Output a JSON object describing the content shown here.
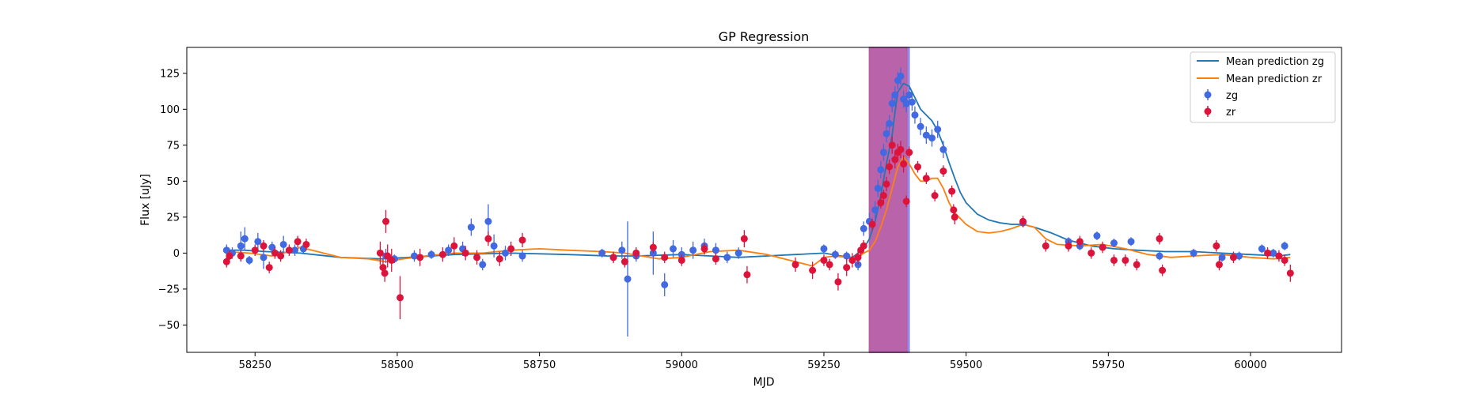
{
  "chart_data": {
    "type": "scatter",
    "title": "GP Regression",
    "xlabel": "MJD",
    "ylabel": "Flux [uJy]",
    "xlim": [
      58130,
      60160
    ],
    "ylim": [
      -69,
      143
    ],
    "xticks": [
      58250,
      58500,
      58750,
      59000,
      59250,
      59500,
      59750,
      60000
    ],
    "yticks": [
      -50,
      -25,
      0,
      25,
      50,
      75,
      100,
      125
    ],
    "grid": false,
    "legend_position": "top-right",
    "shaded_regions": [
      {
        "x0": 59330,
        "x1": 59400,
        "color": "#8080ee"
      },
      {
        "x0": 59330,
        "x1": 59396,
        "color": "#c05a9e"
      }
    ],
    "series": [
      {
        "name": "Mean prediction zg",
        "kind": "line",
        "color": "#1f77b4",
        "x": [
          58200,
          58230,
          58270,
          58330,
          58400,
          58470,
          58520,
          58600,
          58700,
          58800,
          58870,
          58920,
          59000,
          59050,
          59100,
          59150,
          59200,
          59250,
          59280,
          59300,
          59320,
          59330,
          59340,
          59350,
          59360,
          59370,
          59375,
          59380,
          59390,
          59400,
          59410,
          59420,
          59430,
          59440,
          59450,
          59460,
          59470,
          59480,
          59490,
          59500,
          59520,
          59540,
          59560,
          59580,
          59600,
          59620,
          59650,
          59680,
          59720,
          59760,
          59800,
          59850,
          59900,
          59950,
          60000,
          60050,
          60070
        ],
        "y": [
          2,
          2,
          1,
          0,
          -3,
          -4,
          -3,
          -1,
          0,
          -1,
          -2,
          -2,
          -1,
          -2,
          -3,
          -2,
          -1,
          0,
          -2,
          -3,
          3,
          10,
          22,
          40,
          62,
          82,
          98,
          112,
          118,
          116,
          108,
          100,
          96,
          92,
          85,
          75,
          63,
          52,
          42,
          35,
          27,
          23,
          21,
          20,
          20,
          18,
          14,
          9,
          5,
          3,
          2,
          1,
          1,
          0,
          -1,
          -2,
          -1
        ]
      },
      {
        "name": "Mean prediction zr",
        "kind": "line",
        "color": "#ff7f0e",
        "x": [
          58200,
          58240,
          58280,
          58300,
          58330,
          58360,
          58400,
          58450,
          58480,
          58510,
          58550,
          58600,
          58650,
          58700,
          58750,
          58800,
          58860,
          58900,
          58930,
          58960,
          59000,
          59050,
          59100,
          59150,
          59200,
          59230,
          59250,
          59270,
          59290,
          59310,
          59320,
          59330,
          59340,
          59350,
          59360,
          59370,
          59380,
          59390,
          59400,
          59410,
          59420,
          59430,
          59440,
          59450,
          59460,
          59470,
          59480,
          59500,
          59520,
          59540,
          59560,
          59580,
          59600,
          59620,
          59640,
          59660,
          59700,
          59740,
          59780,
          59820,
          59860,
          59900,
          59950,
          60000,
          60040,
          60070
        ],
        "y": [
          1,
          0,
          -2,
          0,
          4,
          1,
          -3,
          -4,
          -6,
          -4,
          -2,
          0,
          0,
          2,
          3,
          2,
          1,
          0,
          -2,
          -4,
          -3,
          1,
          2,
          -1,
          -6,
          -9,
          -3,
          -2,
          -3,
          -3,
          0,
          2,
          8,
          18,
          30,
          45,
          60,
          67,
          62,
          55,
          50,
          50,
          52,
          52,
          45,
          35,
          28,
          20,
          15,
          14,
          15,
          17,
          20,
          18,
          10,
          6,
          5,
          6,
          3,
          -1,
          -3,
          -2,
          -1,
          -3,
          -4,
          -3
        ]
      },
      {
        "name": "zg",
        "kind": "errorbar",
        "color": "#4169e1",
        "x": [
          58200,
          58210,
          58225,
          58232,
          58240,
          58255,
          58265,
          58280,
          58300,
          58320,
          58335,
          58480,
          58495,
          58530,
          58560,
          58590,
          58615,
          58630,
          58650,
          58660,
          58670,
          58690,
          58720,
          58860,
          58880,
          58895,
          58905,
          58920,
          58950,
          58970,
          58985,
          59000,
          59020,
          59040,
          59060,
          59080,
          59100,
          59250,
          59270,
          59290,
          59310,
          59320,
          59330,
          59340,
          59345,
          59350,
          59355,
          59360,
          59365,
          59370,
          59375,
          59380,
          59385,
          59390,
          59395,
          59400,
          59405,
          59410,
          59420,
          59430,
          59440,
          59450,
          59460,
          59600,
          59680,
          59700,
          59730,
          59760,
          59790,
          59840,
          59900,
          59950,
          59980,
          60020,
          60040,
          60060
        ],
        "y": [
          2,
          0,
          5,
          10,
          -5,
          8,
          -3,
          4,
          6,
          2,
          3,
          -2,
          -4,
          -2,
          -1,
          2,
          3,
          18,
          -8,
          22,
          5,
          0,
          -2,
          0,
          -3,
          2,
          -18,
          -2,
          0,
          -22,
          3,
          -1,
          2,
          5,
          2,
          -3,
          0,
          3,
          -1,
          -2,
          -8,
          17,
          22,
          30,
          45,
          58,
          70,
          83,
          90,
          104,
          110,
          120,
          123,
          107,
          104,
          110,
          105,
          96,
          88,
          82,
          80,
          86,
          72,
          21,
          8,
          5,
          12,
          7,
          8,
          -2,
          0,
          -3,
          -2,
          3,
          0,
          5
        ],
        "err": [
          4,
          4,
          10,
          8,
          3,
          6,
          8,
          4,
          6,
          4,
          3,
          5,
          3,
          4,
          3,
          4,
          5,
          6,
          4,
          12,
          8,
          5,
          4,
          3,
          3,
          6,
          40,
          4,
          15,
          8,
          6,
          5,
          6,
          5,
          5,
          4,
          4,
          3,
          3,
          3,
          4,
          5,
          6,
          6,
          6,
          6,
          6,
          6,
          6,
          6,
          6,
          6,
          6,
          6,
          6,
          6,
          6,
          6,
          6,
          6,
          6,
          6,
          6,
          3,
          3,
          3,
          3,
          3,
          3,
          3,
          3,
          3,
          3,
          3,
          3,
          3
        ]
      },
      {
        "name": "zr",
        "kind": "errorbar",
        "color": "#dc143c",
        "x": [
          58200,
          58205,
          58225,
          58250,
          58265,
          58275,
          58285,
          58295,
          58310,
          58325,
          58340,
          58470,
          58475,
          58478,
          58480,
          58483,
          58490,
          58505,
          58540,
          58580,
          58600,
          58620,
          58640,
          58660,
          58680,
          58700,
          58720,
          58880,
          58900,
          58920,
          58950,
          58970,
          59000,
          59040,
          59060,
          59110,
          59115,
          59200,
          59230,
          59250,
          59260,
          59275,
          59290,
          59300,
          59310,
          59315,
          59320,
          59335,
          59350,
          59355,
          59360,
          59365,
          59370,
          59375,
          59380,
          59385,
          59390,
          59395,
          59400,
          59415,
          59430,
          59445,
          59460,
          59475,
          59478,
          59480,
          59600,
          59640,
          59680,
          59700,
          59720,
          59740,
          59760,
          59780,
          59800,
          59840,
          59845,
          59940,
          59945,
          59970,
          60030,
          60050,
          60060,
          60070
        ],
        "y": [
          -6,
          -2,
          -2,
          2,
          5,
          -10,
          0,
          -2,
          2,
          8,
          6,
          0,
          -10,
          -14,
          22,
          -2,
          -5,
          -31,
          -3,
          -1,
          5,
          0,
          -3,
          10,
          -4,
          3,
          9,
          -3,
          -6,
          0,
          4,
          -3,
          -5,
          3,
          -4,
          10,
          -15,
          -8,
          -12,
          -5,
          -8,
          -20,
          -10,
          -5,
          -3,
          2,
          5,
          20,
          35,
          40,
          48,
          60,
          75,
          65,
          70,
          72,
          62,
          36,
          70,
          60,
          52,
          40,
          57,
          43,
          30,
          25,
          22,
          5,
          5,
          8,
          0,
          4,
          -5,
          -5,
          -8,
          10,
          -12,
          5,
          -8,
          -3,
          0,
          -2,
          -5,
          -14
        ],
        "err": [
          4,
          4,
          4,
          4,
          4,
          4,
          4,
          4,
          4,
          4,
          4,
          8,
          6,
          6,
          8,
          8,
          8,
          15,
          6,
          5,
          6,
          5,
          5,
          5,
          5,
          5,
          5,
          4,
          4,
          4,
          4,
          4,
          4,
          4,
          4,
          6,
          6,
          5,
          6,
          4,
          4,
          6,
          6,
          5,
          5,
          4,
          4,
          4,
          4,
          4,
          5,
          5,
          6,
          6,
          6,
          6,
          6,
          4,
          4,
          4,
          4,
          4,
          4,
          4,
          4,
          5,
          4,
          4,
          4,
          4,
          4,
          4,
          4,
          4,
          4,
          4,
          4,
          4,
          4,
          4,
          4,
          4,
          4,
          6
        ]
      }
    ]
  }
}
